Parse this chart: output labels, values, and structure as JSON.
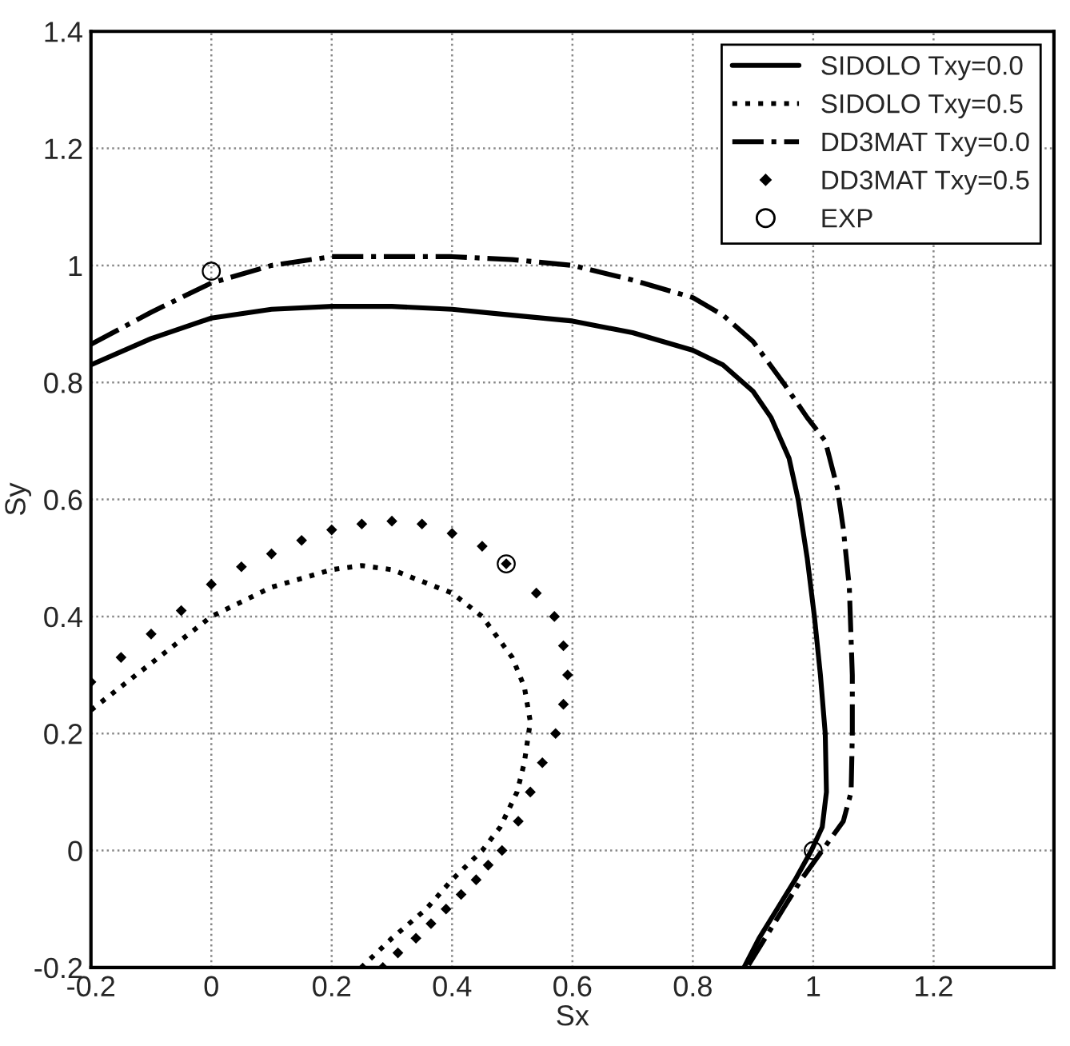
{
  "chart_data": {
    "type": "line",
    "xlabel": "Sx",
    "ylabel": "Sy",
    "xlim": [
      -0.2,
      1.4
    ],
    "ylim": [
      -0.2,
      1.4
    ],
    "xticks": [
      -0.2,
      0,
      0.2,
      0.4,
      0.6,
      0.8,
      1,
      1.2
    ],
    "yticks": [
      -0.2,
      0,
      0.2,
      0.4,
      0.6,
      0.8,
      1,
      1.2,
      1.4
    ],
    "grid": true,
    "legend": "top right",
    "series": [
      {
        "name": "SIDOLO Txy=0.0",
        "line_style": "solid",
        "color": "#000000",
        "x": [
          -0.2,
          -0.1,
          0,
          0.1,
          0.2,
          0.3,
          0.4,
          0.5,
          0.6,
          0.7,
          0.8,
          0.85,
          0.9,
          0.93,
          0.96,
          0.975,
          0.99,
          1.002,
          1.012,
          1.02,
          1.022,
          1.015,
          0.997,
          0.97,
          0.94,
          0.91,
          0.885
        ],
        "values": [
          0.83,
          0.875,
          0.91,
          0.925,
          0.93,
          0.93,
          0.925,
          0.915,
          0.905,
          0.885,
          0.855,
          0.83,
          0.785,
          0.74,
          0.67,
          0.6,
          0.5,
          0.4,
          0.3,
          0.2,
          0.1,
          0.04,
          0.0,
          -0.05,
          -0.1,
          -0.15,
          -0.2
        ]
      },
      {
        "name": "SIDOLO Txy=0.5",
        "line_style": "dotted",
        "color": "#000000",
        "x": [
          -0.2,
          -0.1,
          0,
          0.1,
          0.2,
          0.25,
          0.3,
          0.4,
          0.45,
          0.5,
          0.52,
          0.53,
          0.52,
          0.508,
          0.48,
          0.45,
          0.4,
          0.357,
          0.3,
          0.249
        ],
        "values": [
          0.24,
          0.32,
          0.4,
          0.45,
          0.48,
          0.487,
          0.48,
          0.44,
          0.4,
          0.33,
          0.28,
          0.22,
          0.15,
          0.1,
          0.04,
          0.0,
          -0.05,
          -0.1,
          -0.15,
          -0.2
        ]
      },
      {
        "name": "DD3MAT Txy=0.0",
        "line_style": "dashdot",
        "color": "#000000",
        "x": [
          -0.2,
          -0.1,
          0,
          0.1,
          0.2,
          0.3,
          0.4,
          0.5,
          0.6,
          0.7,
          0.8,
          0.85,
          0.9,
          0.95,
          0.99,
          1.02,
          1.04,
          1.05,
          1.06,
          1.065,
          1.065,
          1.063,
          1.05,
          1.015,
          0.98,
          0.95,
          0.92,
          0.89
        ],
        "values": [
          0.865,
          0.92,
          0.97,
          1.0,
          1.015,
          1.015,
          1.015,
          1.01,
          1.0,
          0.975,
          0.945,
          0.915,
          0.87,
          0.8,
          0.74,
          0.7,
          0.62,
          0.55,
          0.45,
          0.3,
          0.2,
          0.1,
          0.05,
          0.0,
          -0.05,
          -0.1,
          -0.15,
          -0.2
        ]
      },
      {
        "name": "DD3MAT Txy=0.5",
        "type": "scatter",
        "marker": "diamond",
        "color": "#000000",
        "x": [
          -0.2,
          -0.15,
          -0.1,
          -0.05,
          0,
          0.05,
          0.1,
          0.15,
          0.2,
          0.25,
          0.3,
          0.35,
          0.4,
          0.45,
          0.49,
          0.54,
          0.57,
          0.585,
          0.592,
          0.585,
          0.572,
          0.55,
          0.53,
          0.51,
          0.483,
          0.46,
          0.44,
          0.415,
          0.39,
          0.365,
          0.34,
          0.31,
          0.285
        ],
        "values": [
          0.288,
          0.33,
          0.37,
          0.41,
          0.455,
          0.485,
          0.507,
          0.53,
          0.548,
          0.558,
          0.563,
          0.558,
          0.542,
          0.52,
          0.49,
          0.44,
          0.4,
          0.35,
          0.3,
          0.25,
          0.2,
          0.15,
          0.1,
          0.05,
          0.0,
          -0.025,
          -0.05,
          -0.075,
          -0.1,
          -0.125,
          -0.15,
          -0.175,
          -0.2
        ]
      },
      {
        "name": "EXP",
        "type": "scatter",
        "marker": "circle",
        "color": "#000000",
        "x": [
          0,
          0.49,
          1.0
        ],
        "values": [
          0.99,
          0.49,
          0.0
        ]
      }
    ]
  }
}
